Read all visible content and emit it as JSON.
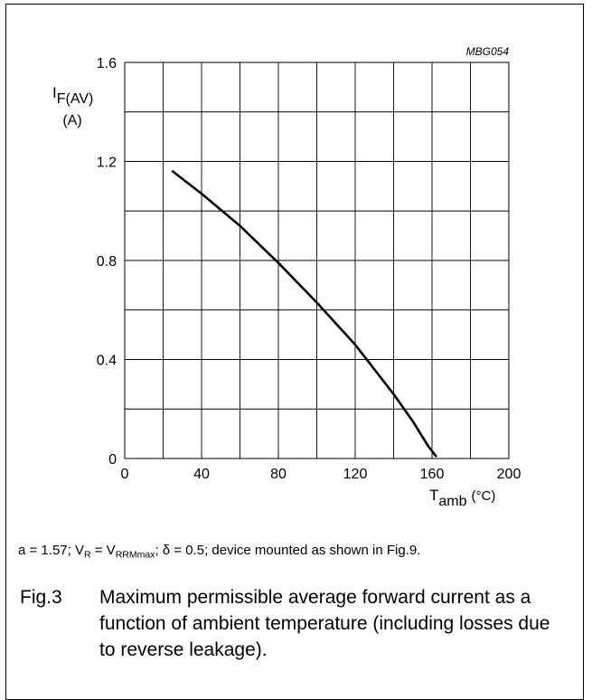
{
  "chart_data": {
    "type": "line",
    "figure_code": "MBG054",
    "ylabel": {
      "main": "I",
      "sub": "F(AV)",
      "unit": "(A)"
    },
    "xlabel": {
      "main": "T",
      "sub": "amb",
      "unit": "(°C)"
    },
    "xlim": [
      0,
      200
    ],
    "ylim": [
      0,
      1.6
    ],
    "x_ticks": [
      0,
      40,
      80,
      120,
      160,
      200
    ],
    "x_tick_labels": [
      "0",
      "40",
      "80",
      "120",
      "160",
      "200"
    ],
    "y_ticks": [
      0,
      0.4,
      0.8,
      1.2,
      1.6
    ],
    "y_tick_labels": [
      "0",
      "0.4",
      "0.8",
      "1.2",
      "1.6"
    ],
    "grid": {
      "x_step": 20,
      "y_step": 0.2
    },
    "series": [
      {
        "x": [
          25,
          40,
          60,
          80,
          100,
          120,
          140,
          150,
          158,
          162
        ],
        "y": [
          1.16,
          1.07,
          0.94,
          0.79,
          0.63,
          0.46,
          0.26,
          0.15,
          0.05,
          0.01
        ]
      }
    ]
  },
  "note": {
    "a_text": "a = 1.57; V",
    "vr_sub": "R",
    "eq": " = V",
    "vrrm_sub": "RRMmax",
    "rest": "; δ = 0.5; device mounted as shown in Fig.9."
  },
  "caption": {
    "figure_number": "Fig.3",
    "text": "Maximum permissible average forward current as a function of ambient temperature (including losses due to reverse leakage)."
  }
}
